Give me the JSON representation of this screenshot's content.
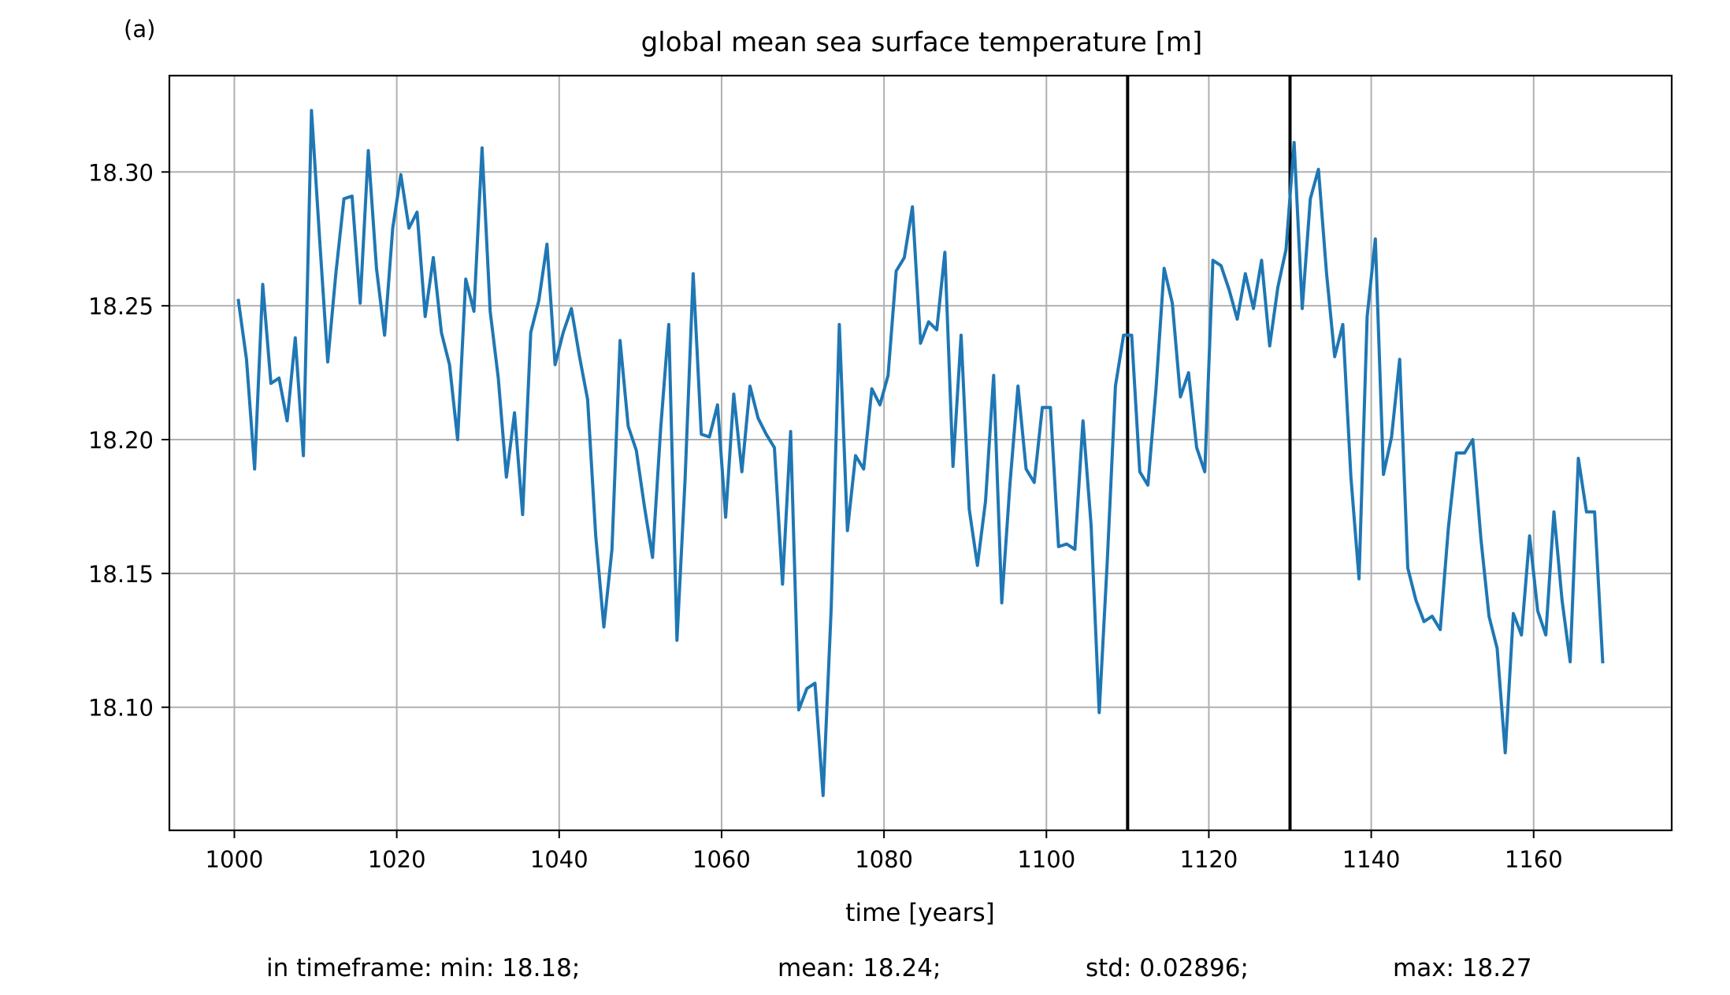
{
  "panel_label": "(a)",
  "chart_data": {
    "type": "line",
    "title": "global mean sea surface temperature [m]",
    "xlabel": "time [years]",
    "ylabel": "",
    "xlim": [
      992,
      1177
    ],
    "ylim": [
      18.054,
      18.336
    ],
    "xticks": [
      1000,
      1020,
      1040,
      1060,
      1080,
      1100,
      1120,
      1140,
      1160
    ],
    "xtick_labels": [
      "1000",
      "1020",
      "1040",
      "1060",
      "1080",
      "1100",
      "1120",
      "1140",
      "1160"
    ],
    "yticks": [
      18.1,
      18.15,
      18.2,
      18.25,
      18.3
    ],
    "ytick_labels": [
      "18.10",
      "18.15",
      "18.20",
      "18.25",
      "18.30"
    ],
    "grid": true,
    "line_color": "#1f77b4",
    "vlines": [
      1110,
      1130
    ],
    "vline_color": "#000000",
    "series": [
      {
        "x": [
          1000.5,
          1001.5,
          1002.5,
          1003.5,
          1004.5,
          1005.5,
          1006.5,
          1007.5,
          1008.5,
          1009.5,
          1010.5,
          1011.5,
          1012.5,
          1013.5,
          1014.5,
          1015.5,
          1016.5,
          1017.5,
          1018.5,
          1019.5,
          1020.5,
          1021.5,
          1022.5,
          1023.5,
          1024.5,
          1025.5,
          1026.5,
          1027.5,
          1028.5,
          1029.5,
          1030.5,
          1031.5,
          1032.5,
          1033.5,
          1034.5,
          1035.5,
          1036.5,
          1037.5,
          1038.5,
          1039.5,
          1040.5,
          1041.5,
          1042.5,
          1043.5,
          1044.5,
          1045.5,
          1046.5,
          1047.5,
          1048.5,
          1049.5,
          1050.5,
          1051.5,
          1052.5,
          1053.5,
          1054.5,
          1055.5,
          1056.5,
          1057.5,
          1058.5,
          1059.5,
          1060.5,
          1061.5,
          1062.5,
          1063.5,
          1064.5,
          1065.5,
          1066.5,
          1067.5,
          1068.5,
          1069.5,
          1070.5,
          1071.5,
          1072.5,
          1073.5,
          1074.5,
          1075.5,
          1076.5,
          1077.5,
          1078.5,
          1079.5,
          1080.5,
          1081.5,
          1082.5,
          1083.5,
          1084.5,
          1085.5,
          1086.5,
          1087.5,
          1088.5,
          1089.5,
          1090.5,
          1091.5,
          1092.5,
          1093.5,
          1094.5,
          1095.5,
          1096.5,
          1097.5,
          1098.5,
          1099.5,
          1100.5,
          1101.5,
          1102.5,
          1103.5,
          1104.5,
          1105.5,
          1106.5,
          1107.5,
          1108.5,
          1109.5,
          1110.5,
          1111.5,
          1112.5,
          1113.5,
          1114.5,
          1115.5,
          1116.5,
          1117.5,
          1118.5,
          1119.5,
          1120.5,
          1121.5,
          1122.5,
          1123.5,
          1124.5,
          1125.5,
          1126.5,
          1127.5,
          1128.5,
          1129.5,
          1130.5,
          1131.5,
          1132.5,
          1133.5,
          1134.5,
          1135.5,
          1136.5,
          1137.5,
          1138.5,
          1139.5,
          1140.5,
          1141.5,
          1142.5,
          1143.5,
          1144.5,
          1145.5,
          1146.5,
          1147.5,
          1148.5,
          1149.5,
          1150.5,
          1151.5,
          1152.5,
          1153.5,
          1154.5,
          1155.5,
          1156.5,
          1157.5,
          1158.5,
          1159.5,
          1160.5,
          1161.5,
          1162.5,
          1163.5,
          1164.5,
          1165.5,
          1166.5,
          1167.5,
          1168.5
        ],
        "y": [
          18.252,
          18.23,
          18.189,
          18.258,
          18.221,
          18.223,
          18.207,
          18.238,
          18.194,
          18.323,
          18.275,
          18.229,
          18.262,
          18.29,
          18.291,
          18.251,
          18.308,
          18.264,
          18.239,
          18.279,
          18.299,
          18.279,
          18.285,
          18.246,
          18.268,
          18.24,
          18.228,
          18.2,
          18.26,
          18.248,
          18.309,
          18.248,
          18.223,
          18.186,
          18.21,
          18.172,
          18.24,
          18.252,
          18.273,
          18.228,
          18.24,
          18.249,
          18.231,
          18.215,
          18.164,
          18.13,
          18.159,
          18.237,
          18.205,
          18.196,
          18.175,
          18.156,
          18.204,
          18.243,
          18.125,
          18.185,
          18.262,
          18.202,
          18.201,
          18.213,
          18.171,
          18.217,
          18.188,
          18.22,
          18.208,
          18.202,
          18.197,
          18.146,
          18.203,
          18.099,
          18.107,
          18.109,
          18.067,
          18.137,
          18.243,
          18.166,
          18.194,
          18.189,
          18.219,
          18.213,
          18.224,
          18.263,
          18.268,
          18.287,
          18.236,
          18.244,
          18.241,
          18.27,
          18.19,
          18.239,
          18.174,
          18.153,
          18.177,
          18.224,
          18.139,
          18.183,
          18.22,
          18.189,
          18.184,
          18.212,
          18.212,
          18.16,
          18.161,
          18.159,
          18.207,
          18.168,
          18.098,
          18.155,
          18.22,
          18.239,
          18.239,
          18.188,
          18.183,
          18.219,
          18.264,
          18.251,
          18.216,
          18.225,
          18.197,
          18.188,
          18.267,
          18.265,
          18.256,
          18.245,
          18.262,
          18.249,
          18.267,
          18.235,
          18.257,
          18.271,
          18.311,
          18.249,
          18.29,
          18.301,
          18.262,
          18.231,
          18.243,
          18.186,
          18.148,
          18.246,
          18.275,
          18.187,
          18.201,
          18.23,
          18.152,
          18.14,
          18.132,
          18.134,
          18.129,
          18.167,
          18.195,
          18.195,
          18.2,
          18.163,
          18.134,
          18.122,
          18.083,
          18.135,
          18.127,
          18.164,
          18.136,
          18.127,
          18.173,
          18.14,
          18.117,
          18.193,
          18.173,
          18.173,
          18.117
        ]
      }
    ]
  },
  "stats": {
    "min_text": "in timeframe: min: 18.18;",
    "mean_text": "mean: 18.24;",
    "std_text": "std: 0.02896;",
    "max_text": "max: 18.27"
  }
}
